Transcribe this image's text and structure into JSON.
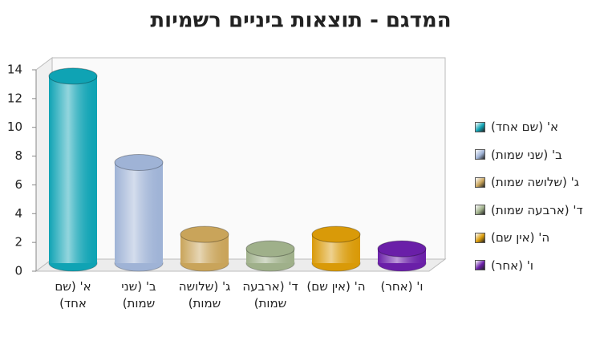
{
  "chart_data": {
    "type": "bar",
    "title": "המדגם - תוצאות ביניים רשמיות",
    "categories": [
      "א' (שם אחד)",
      "ב' (שני שמות)",
      "ג' (שלושה שמות)",
      "ד' (ארבעה שמות)",
      "ה' (אין שם)",
      "ו' (אחר)"
    ],
    "values": [
      13,
      7,
      2,
      1,
      2,
      1
    ],
    "colors": [
      "#0fa3b4",
      "#9fb3d6",
      "#c9a45a",
      "#9fb08a",
      "#d99a08",
      "#6a1fa8"
    ],
    "ylim": [
      0,
      14
    ],
    "yticks": [
      0,
      2,
      4,
      6,
      8,
      10,
      12,
      14
    ]
  }
}
